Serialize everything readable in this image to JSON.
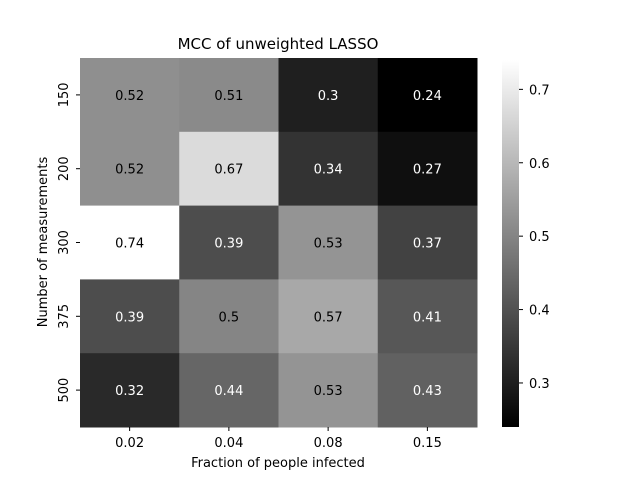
{
  "chart_data": {
    "type": "heatmap",
    "title": "MCC of unweighted LASSO",
    "xlabel": "Fraction of people infected",
    "ylabel": "Number of measurements",
    "x_categories": [
      "0.02",
      "0.04",
      "0.08",
      "0.15"
    ],
    "y_categories": [
      "150",
      "200",
      "300",
      "375",
      "500"
    ],
    "values": [
      [
        0.52,
        0.51,
        0.3,
        0.24
      ],
      [
        0.52,
        0.67,
        0.34,
        0.27
      ],
      [
        0.74,
        0.39,
        0.53,
        0.37
      ],
      [
        0.39,
        0.5,
        0.57,
        0.41
      ],
      [
        0.32,
        0.44,
        0.53,
        0.43
      ]
    ],
    "cell_labels": [
      [
        "0.52",
        "0.51",
        "0.3",
        "0.24"
      ],
      [
        "0.52",
        "0.67",
        "0.34",
        "0.27"
      ],
      [
        "0.74",
        "0.39",
        "0.53",
        "0.37"
      ],
      [
        "0.39",
        "0.5",
        "0.57",
        "0.41"
      ],
      [
        "0.32",
        "0.44",
        "0.53",
        "0.43"
      ]
    ],
    "colormap": "gray",
    "vmin": 0.24,
    "vmax": 0.74,
    "colorbar_ticks": [
      0.3,
      0.4,
      0.5,
      0.6,
      0.7
    ],
    "colorbar_tick_labels": [
      "0.3",
      "0.4",
      "0.5",
      "0.6",
      "0.7"
    ],
    "colors": {
      "low": "#000000",
      "high": "#ffffff",
      "text_on_dark": "#ffffff",
      "text_on_light": "#000000"
    }
  }
}
